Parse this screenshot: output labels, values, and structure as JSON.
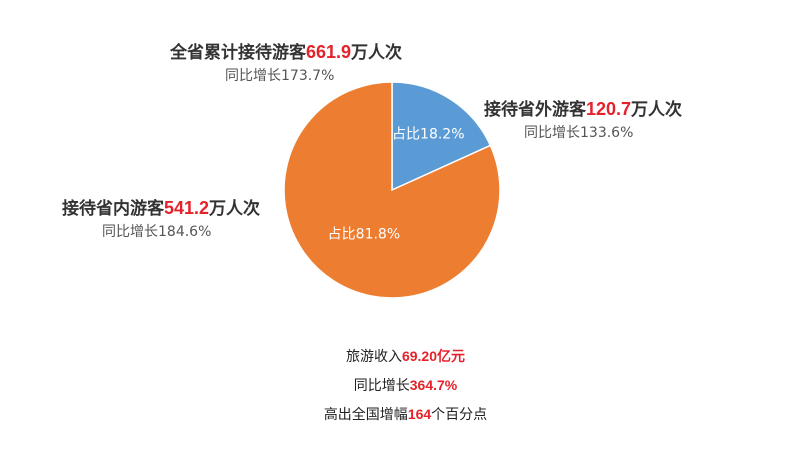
{
  "chart_data": {
    "type": "pie",
    "slices": [
      {
        "label": "接待省外游客",
        "value": 120.7,
        "unit": "万人次",
        "share_text": "占比18.2%",
        "yoy_text": "同比增长133.6%",
        "color": "#5b9bd5"
      },
      {
        "label": "接待省内游客",
        "value": 541.2,
        "unit": "万人次",
        "share_text": "占比81.8%",
        "yoy_text": "同比增长184.6%",
        "color": "#ed7d31"
      }
    ],
    "total": {
      "label": "全省累计接待游客",
      "value": "661.9",
      "unit": "万人次",
      "yoy_text": "同比增长173.7%"
    }
  },
  "summary": [
    {
      "prefix": "旅游收入",
      "value": "69.20亿元",
      "suffix": ""
    },
    {
      "prefix": "同比增长",
      "value": "364.7%",
      "suffix": ""
    },
    {
      "prefix": "高出全国增幅",
      "value": "164",
      "suffix": "个百分点"
    }
  ]
}
